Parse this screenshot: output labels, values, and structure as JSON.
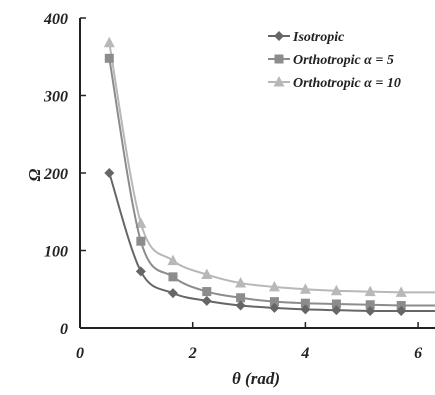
{
  "chart_data": {
    "type": "line",
    "title": "",
    "xlabel": "θ (rad)",
    "ylabel": "Ω",
    "xlim": [
      0,
      6.3
    ],
    "ylim": [
      0,
      400
    ],
    "xticks": [
      0,
      2,
      4,
      6
    ],
    "yticks": [
      0,
      100,
      200,
      300,
      400
    ],
    "grid": false,
    "legend_position": "top-right",
    "series": [
      {
        "name": "Isotropic",
        "color": "#666666",
        "marker": "diamond",
        "x": [
          0.52,
          1.08,
          1.65,
          2.25,
          2.85,
          3.45,
          4.0,
          4.55,
          5.15,
          5.7
        ],
        "y": [
          200,
          73,
          45,
          35,
          29,
          26,
          24,
          23,
          22,
          22
        ]
      },
      {
        "name": "Orthotropic α = 5",
        "color": "#8c8c8c",
        "marker": "square",
        "x": [
          0.52,
          1.08,
          1.65,
          2.25,
          2.85,
          3.45,
          4.0,
          4.55,
          5.15,
          5.7
        ],
        "y": [
          348,
          112,
          66,
          47,
          39,
          34,
          32,
          31,
          30,
          29
        ]
      },
      {
        "name": "Orthotropic α = 10",
        "color": "#b8b8b8",
        "marker": "triangle",
        "x": [
          0.52,
          1.08,
          1.65,
          2.25,
          2.85,
          3.45,
          4.0,
          4.55,
          5.15,
          5.7
        ],
        "y": [
          368,
          135,
          87,
          69,
          58,
          53,
          50,
          48,
          47,
          46
        ]
      }
    ]
  }
}
